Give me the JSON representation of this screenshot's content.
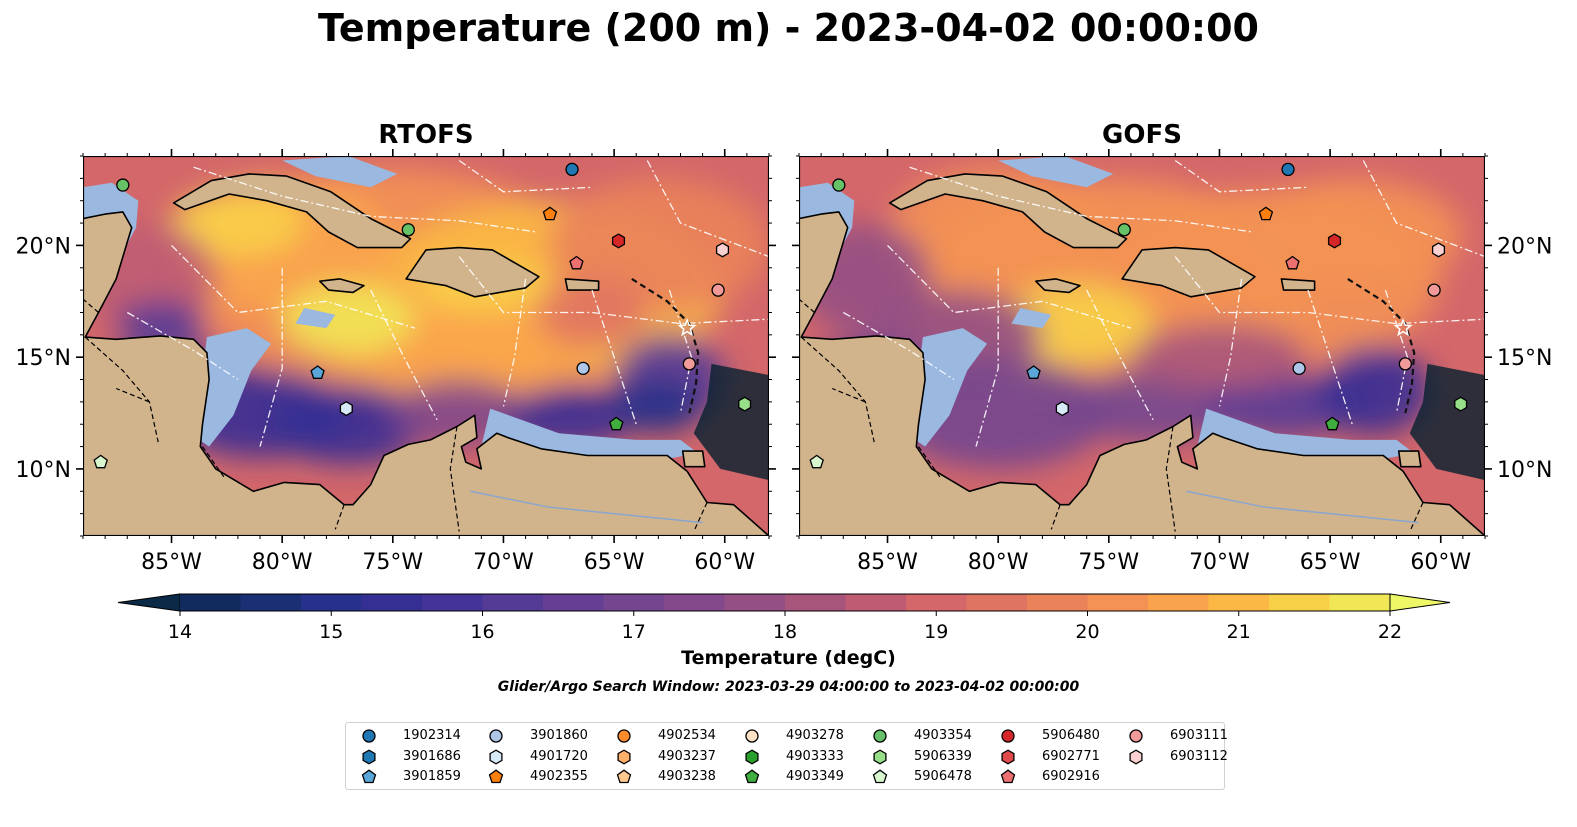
{
  "title": "Temperature (200 m) - 2023-04-02 00:00:00",
  "panels": [
    {
      "title": "RTOFS",
      "side": "left"
    },
    {
      "title": "GOFS",
      "side": "right"
    }
  ],
  "axes": {
    "lon_ticks": [
      "85°W",
      "80°W",
      "75°W",
      "70°W",
      "65°W",
      "60°W"
    ],
    "lon_values": [
      -85,
      -80,
      -75,
      -70,
      -65,
      -60
    ],
    "lat_ticks": [
      "20°N",
      "15°N",
      "10°N"
    ],
    "lat_values": [
      20,
      15,
      10
    ],
    "lon_range": [
      -89,
      -58
    ],
    "lat_range": [
      7,
      24
    ]
  },
  "colorbar": {
    "label": "Temperature (degC)",
    "ticks": [
      "14",
      "15",
      "16",
      "17",
      "18",
      "19",
      "20",
      "21",
      "22"
    ],
    "range": [
      14,
      22
    ],
    "extend": "both",
    "colors": [
      "#0b2a47",
      "#122b5f",
      "#1b2f74",
      "#27308a",
      "#362f93",
      "#443497",
      "#543b96",
      "#643f93",
      "#73468f",
      "#83498a",
      "#945084",
      "#a8557c",
      "#bf5c74",
      "#d3676a",
      "#e07462",
      "#ea835a",
      "#f39254",
      "#f9a44c",
      "#fbb845",
      "#f8d048",
      "#f1e656",
      "#eef765"
    ]
  },
  "search_window": "Glider/Argo Search Window: 2023-03-29 04:00:00 to 2023-04-02 00:00:00",
  "legend": {
    "columns": [
      [
        {
          "id": "1902314",
          "marker": "circle",
          "color": "#1f77b4"
        },
        {
          "id": "3901686",
          "marker": "hexagon",
          "color": "#1f77b4"
        },
        {
          "id": "3901859",
          "marker": "pentagon",
          "color": "#5aa6d8"
        }
      ],
      [
        {
          "id": "3901860",
          "marker": "circle",
          "color": "#aec7e8"
        },
        {
          "id": "4901720",
          "marker": "hexagon",
          "color": "#d7eaf7"
        },
        {
          "id": "4902355",
          "marker": "pentagon",
          "color": "#ff7f0e"
        }
      ],
      [
        {
          "id": "4902534",
          "marker": "circle",
          "color": "#ff8c2a"
        },
        {
          "id": "4903237",
          "marker": "hexagon",
          "color": "#ffb06a"
        },
        {
          "id": "4903238",
          "marker": "pentagon",
          "color": "#ffc990"
        }
      ],
      [
        {
          "id": "4903278",
          "marker": "circle",
          "color": "#fde1c6"
        },
        {
          "id": "4903333",
          "marker": "hexagon",
          "color": "#2ca02c"
        },
        {
          "id": "4903349",
          "marker": "pentagon",
          "color": "#3fae3f"
        }
      ],
      [
        {
          "id": "4903354",
          "marker": "circle",
          "color": "#67c267"
        },
        {
          "id": "5906339",
          "marker": "hexagon",
          "color": "#98df8a"
        },
        {
          "id": "5906478",
          "marker": "pentagon",
          "color": "#d8f7cf"
        }
      ],
      [
        {
          "id": "5906480",
          "marker": "circle",
          "color": "#d62728"
        },
        {
          "id": "6902771",
          "marker": "hexagon",
          "color": "#e04a4a"
        },
        {
          "id": "6902916",
          "marker": "pentagon",
          "color": "#ec7070"
        }
      ],
      [
        {
          "id": "6903111",
          "marker": "circle",
          "color": "#f29a9a"
        },
        {
          "id": "6903112",
          "marker": "hexagon",
          "color": "#fbd0d0"
        }
      ]
    ]
  },
  "colors": {
    "land": "#d2b48c",
    "shelf": "#9ab8e0",
    "deep_cold": "#05202e"
  }
}
